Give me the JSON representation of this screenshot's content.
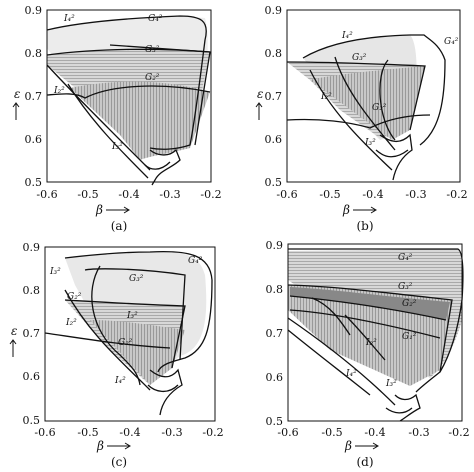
{
  "figure": {
    "panels": [
      {
        "id": "a",
        "caption": "(a)",
        "xlabel": "β",
        "ylabel": "ε",
        "x_ticks": [
          "-0.6",
          "-0.5",
          "-0.4",
          "-0.3",
          "-0.2"
        ],
        "y_ticks": [
          "0.9",
          "0.8",
          "0.7",
          "0.6",
          "0.5"
        ],
        "region_labels": [
          {
            "text": "I₄²"
          },
          {
            "text": "G₄²"
          },
          {
            "text": "G₃²"
          },
          {
            "text": "G₂²"
          },
          {
            "text": "I₂²"
          },
          {
            "text": "I₃²"
          }
        ]
      },
      {
        "id": "b",
        "caption": "(b)",
        "xlabel": "β",
        "ylabel": "ε",
        "x_ticks": [
          "-0.6",
          "-0.5",
          "-0.4",
          "-0.3",
          "-0.2"
        ],
        "y_ticks": [
          "0.9",
          "0.8",
          "0.7",
          "0.6",
          "0.5"
        ],
        "region_labels": [
          {
            "text": "I₄²"
          },
          {
            "text": "G₃²"
          },
          {
            "text": "G₄²"
          },
          {
            "text": "I₂²"
          },
          {
            "text": "G₂²"
          },
          {
            "text": "I₃²"
          }
        ]
      },
      {
        "id": "c",
        "caption": "(c)",
        "xlabel": "β",
        "ylabel": "ε",
        "x_ticks": [
          "-0.6",
          "-0.5",
          "-0.4",
          "-0.3",
          "-0.2"
        ],
        "y_ticks": [
          "0.9",
          "0.8",
          "0.7",
          "0.6",
          "0.5"
        ],
        "region_labels": [
          {
            "text": "I₃²"
          },
          {
            "text": "G₃²"
          },
          {
            "text": "G₄²"
          },
          {
            "text": "G₂²"
          },
          {
            "text": "I₃²"
          },
          {
            "text": "G₂²"
          },
          {
            "text": "I₂²"
          },
          {
            "text": "I₄²"
          }
        ]
      },
      {
        "id": "d",
        "caption": "(d)",
        "xlabel": "β",
        "ylabel": "ε",
        "x_ticks": [
          "-0.6",
          "-0.5",
          "-0.4",
          "-0.3",
          "-0.2"
        ],
        "y_ticks": [
          "0.9",
          "0.8",
          "0.7",
          "0.6",
          "0.5"
        ],
        "region_labels": [
          {
            "text": "G₄²"
          },
          {
            "text": "G₃²"
          },
          {
            "text": "G₂²"
          },
          {
            "text": "G₁²"
          },
          {
            "text": "I₂²"
          },
          {
            "text": "I₃²"
          },
          {
            "text": "I₄²"
          }
        ]
      }
    ]
  }
}
